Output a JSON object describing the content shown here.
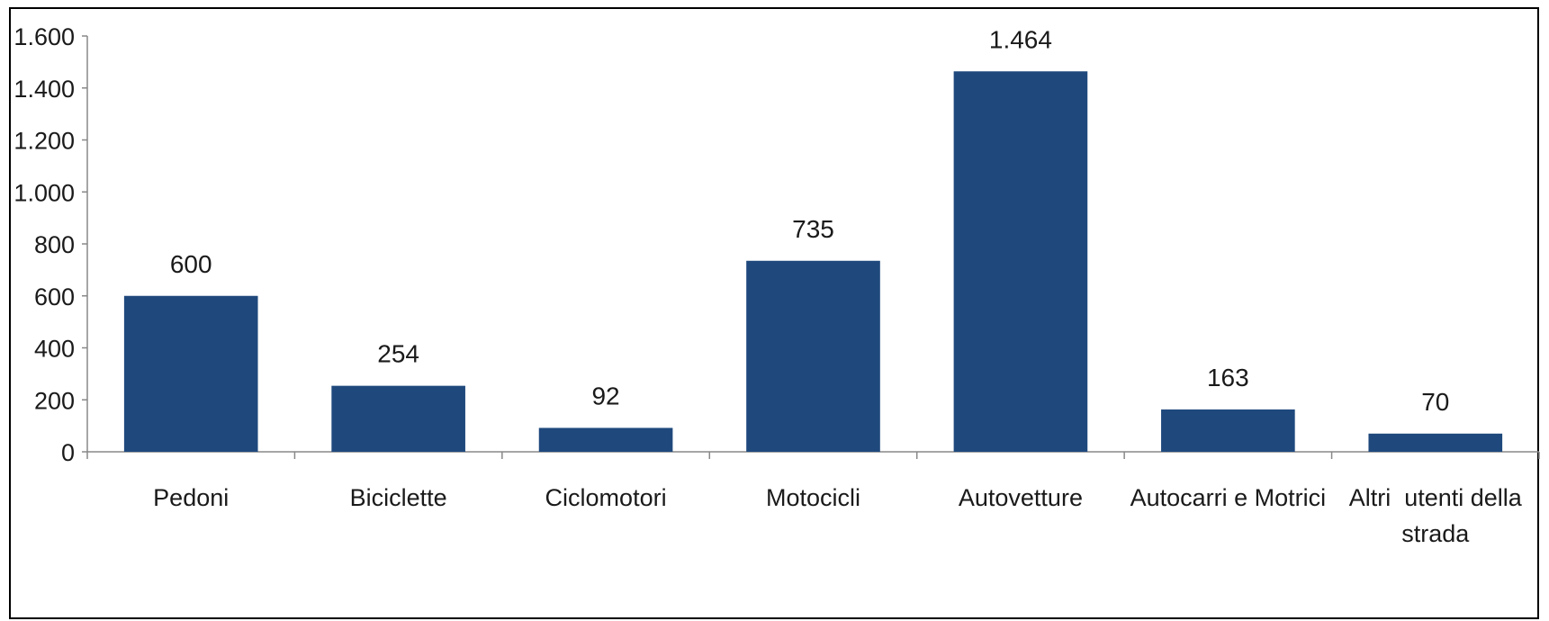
{
  "chart_data": {
    "type": "bar",
    "categories": [
      "Pedoni",
      "Biciclette",
      "Ciclomotori",
      "Motocicli",
      "Autovetture",
      "Autocarri e Motrici",
      "Altri  utenti della strada"
    ],
    "values": [
      600,
      254,
      92,
      735,
      1464,
      163,
      70
    ],
    "data_labels": [
      "600",
      "254",
      "92",
      "735",
      "1.464",
      "163",
      "70"
    ],
    "category_label_lines": [
      [
        "Pedoni"
      ],
      [
        "Biciclette"
      ],
      [
        "Ciclomotori"
      ],
      [
        "Motocicli"
      ],
      [
        "Autovetture"
      ],
      [
        "Autocarri e Motrici"
      ],
      [
        "Altri  utenti della",
        "strada"
      ]
    ],
    "yticks": [
      0,
      200,
      400,
      600,
      800,
      1000,
      1200,
      1400,
      1600
    ],
    "ytick_labels": [
      "0",
      "200",
      "400",
      "600",
      "800",
      "1.000",
      "1.200",
      "1.400",
      "1.600"
    ],
    "ylim": [
      0,
      1600
    ],
    "grid": false,
    "legend": "none",
    "title": "",
    "xlabel": "",
    "ylabel": "",
    "bar_color": "#1f497d",
    "axis_color": "#888888"
  }
}
